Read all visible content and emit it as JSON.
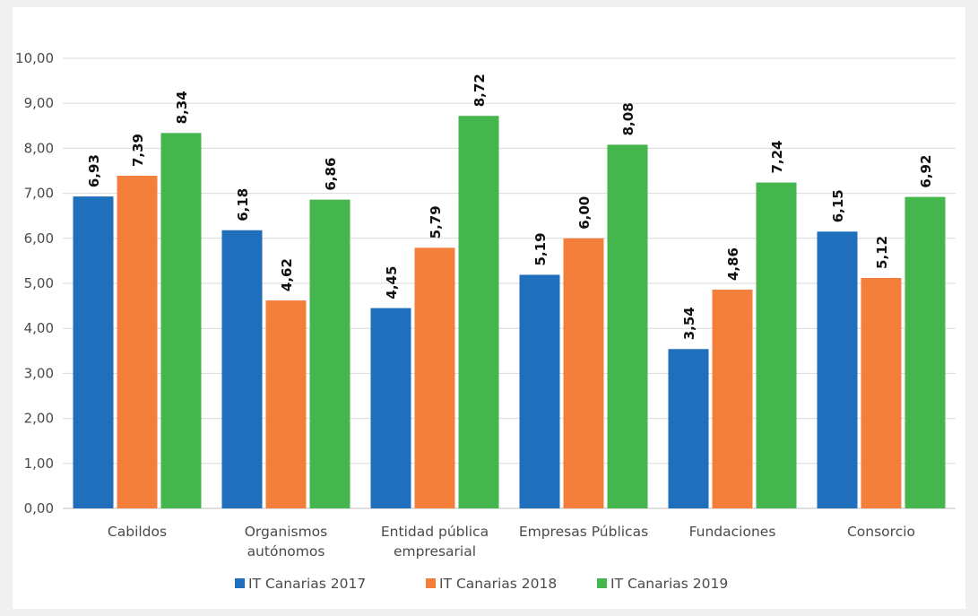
{
  "chart_data": {
    "type": "bar",
    "title": "",
    "xlabel": "",
    "ylabel": "",
    "ylim": [
      0,
      10
    ],
    "ytick_step": 1,
    "ytick_labels": [
      "0,00",
      "1,00",
      "2,00",
      "3,00",
      "4,00",
      "5,00",
      "6,00",
      "7,00",
      "8,00",
      "9,00",
      "10,00"
    ],
    "grid": true,
    "legend_position": "bottom",
    "categories": [
      [
        "Cabildos"
      ],
      [
        "Organismos",
        "autónomos"
      ],
      [
        "Entidad pública",
        "empresarial"
      ],
      [
        "Empresas Públicas"
      ],
      [
        "Fundaciones"
      ],
      [
        "Consorcio"
      ]
    ],
    "series": [
      {
        "name": "IT Canarias 2017",
        "color": "#1f6fbd",
        "values": [
          6.93,
          6.18,
          4.45,
          5.19,
          3.54,
          6.15
        ],
        "labels": [
          "6,93",
          "6,18",
          "4,45",
          "5,19",
          "3,54",
          "6,15"
        ]
      },
      {
        "name": "IT Canarias 2018",
        "color": "#f47f3b",
        "values": [
          7.39,
          4.62,
          5.79,
          6.0,
          4.86,
          5.12
        ],
        "labels": [
          "7,39",
          "4,62",
          "5,79",
          "6,00",
          "4,86",
          "5,12"
        ]
      },
      {
        "name": "IT Canarias 2019",
        "color": "#45b64d",
        "values": [
          8.34,
          6.86,
          8.72,
          8.08,
          7.24,
          6.92
        ],
        "labels": [
          "8,34",
          "6,86",
          "8,72",
          "8,08",
          "7,24",
          "6,92"
        ]
      }
    ]
  }
}
